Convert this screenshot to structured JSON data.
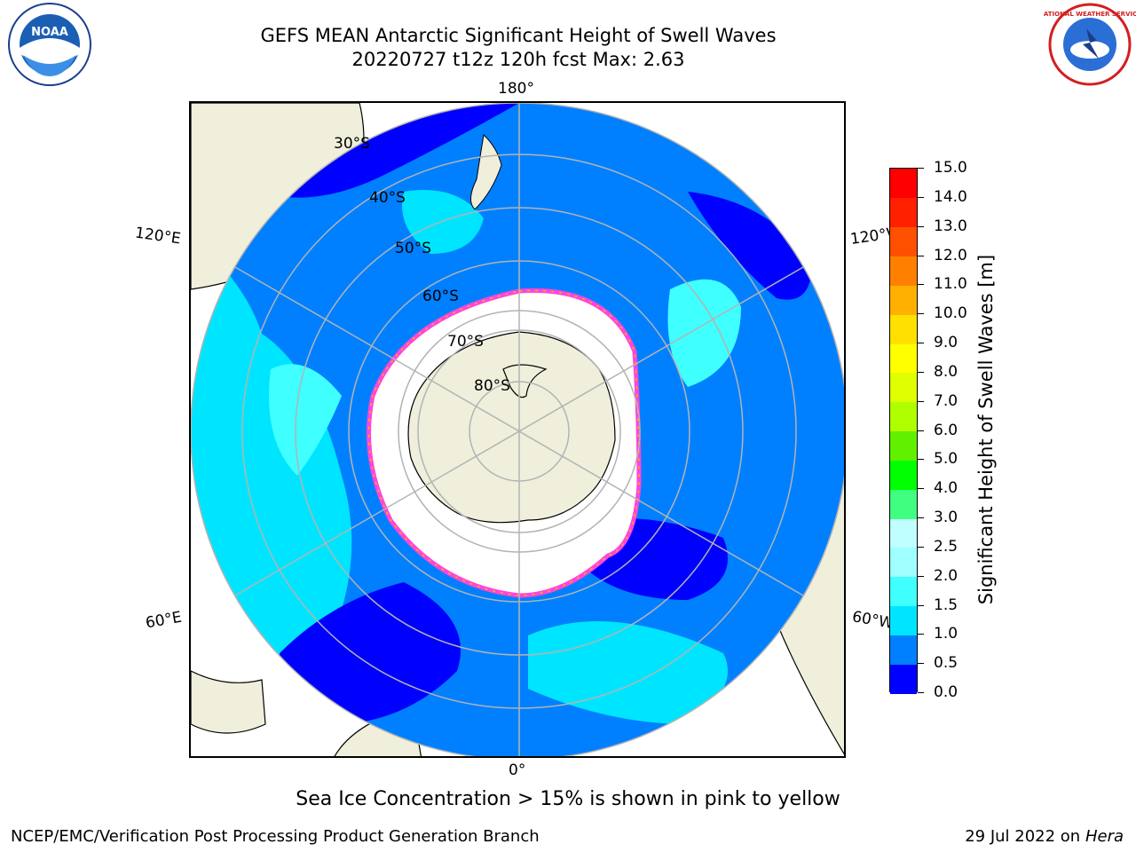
{
  "title": {
    "line1": "GEFS MEAN Antarctic Significant Height of Swell Waves",
    "line2": "20220727 t12z 120h fcst   Max: 2.63"
  },
  "logos": {
    "left_text": "NOAA",
    "right_text": "NATIONAL WEATHER SERVICE"
  },
  "map": {
    "projection": "south-polar-stereographic",
    "lon_labels": {
      "top": "180°",
      "bottom": "0°",
      "left_upper": "120°E",
      "left_lower": "60°E",
      "right_upper": "120°W",
      "right_lower": "60°W"
    },
    "lat_labels": [
      "30°S",
      "40°S",
      "50°S",
      "60°S",
      "70°S",
      "80°S"
    ],
    "colors": {
      "land": "#efefdc",
      "ice_edge": "#ff44dd",
      "ice_fill": "#ffffff",
      "grid": "#b3b3b3"
    }
  },
  "colorbar": {
    "title": "Significant Height of Swell Waves [m]",
    "ticks": [
      "0.0",
      "0.5",
      "1.0",
      "1.5",
      "2.0",
      "2.5",
      "3.0",
      "4.0",
      "5.0",
      "6.0",
      "7.0",
      "8.0",
      "9.0",
      "10.0",
      "11.0",
      "12.0",
      "13.0",
      "14.0",
      "15.0"
    ],
    "colors": [
      "#0000ff",
      "#0080ff",
      "#00e5ff",
      "#40ffff",
      "#a0ffff",
      "#c0ffff",
      "#40ff80",
      "#00ff00",
      "#60f000",
      "#b0ff00",
      "#e0ff00",
      "#ffff00",
      "#ffe000",
      "#ffb000",
      "#ff8000",
      "#ff5000",
      "#ff2000",
      "#ff0000"
    ]
  },
  "footer": {
    "note": "Sea Ice Concentration > 15% is shown in pink to yellow",
    "credit": "NCEP/EMC/Verification Post Processing Product Generation Branch",
    "date": "29 Jul 2022 on",
    "machine": "Hera"
  }
}
